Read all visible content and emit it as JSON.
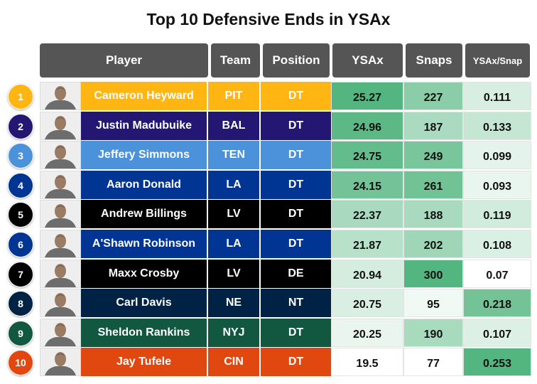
{
  "title": "Top 10 Defensive Ends in YSAx",
  "headers": {
    "player": "Player",
    "team": "Team",
    "position": "Position",
    "ysax": "YSAx",
    "snaps": "Snaps",
    "ysax_per_snap": "YSAx/Snap"
  },
  "rows": [
    {
      "rank": "1",
      "player": "Cameron Heyward",
      "team": "PIT",
      "position": "DT",
      "ysax": "25.27",
      "snaps": "227",
      "ysax_per_snap": "0.111",
      "color": "#FFB612",
      "text_color": "#ffffff"
    },
    {
      "rank": "2",
      "player": "Justin Madubuike",
      "team": "BAL",
      "position": "DT",
      "ysax": "24.96",
      "snaps": "187",
      "ysax_per_snap": "0.133",
      "color": "#241773",
      "text_color": "#ffffff"
    },
    {
      "rank": "3",
      "player": "Jeffery Simmons",
      "team": "TEN",
      "position": "DT",
      "ysax": "24.75",
      "snaps": "249",
      "ysax_per_snap": "0.099",
      "color": "#4B92DB",
      "text_color": "#ffffff"
    },
    {
      "rank": "4",
      "player": "Aaron Donald",
      "team": "LA",
      "position": "DT",
      "ysax": "24.15",
      "snaps": "261",
      "ysax_per_snap": "0.093",
      "color": "#003594",
      "text_color": "#ffffff"
    },
    {
      "rank": "5",
      "player": "Andrew Billings",
      "team": "LV",
      "position": "DT",
      "ysax": "22.37",
      "snaps": "188",
      "ysax_per_snap": "0.119",
      "color": "#000000",
      "text_color": "#ffffff"
    },
    {
      "rank": "6",
      "player": "A'Shawn Robinson",
      "team": "LA",
      "position": "DT",
      "ysax": "21.87",
      "snaps": "202",
      "ysax_per_snap": "0.108",
      "color": "#003594",
      "text_color": "#ffffff"
    },
    {
      "rank": "7",
      "player": "Maxx Crosby",
      "team": "LV",
      "position": "DE",
      "ysax": "20.94",
      "snaps": "300",
      "ysax_per_snap": "0.07",
      "color": "#000000",
      "text_color": "#ffffff"
    },
    {
      "rank": "8",
      "player": "Carl Davis",
      "team": "NE",
      "position": "NT",
      "ysax": "20.75",
      "snaps": "95",
      "ysax_per_snap": "0.218",
      "color": "#002244",
      "text_color": "#ffffff"
    },
    {
      "rank": "9",
      "player": "Sheldon Rankins",
      "team": "NYJ",
      "position": "DT",
      "ysax": "20.25",
      "snaps": "190",
      "ysax_per_snap": "0.107",
      "color": "#125740",
      "text_color": "#ffffff"
    },
    {
      "rank": "10",
      "player": "Jay Tufele",
      "team": "CIN",
      "position": "DT",
      "ysax": "19.5",
      "snaps": "77",
      "ysax_per_snap": "0.253",
      "color": "#E0480F",
      "text_color": "#ffffff"
    }
  ],
  "heat_scale": {
    "low": "#ffffff",
    "high": "#53b57f"
  },
  "chart_data": {
    "type": "table",
    "title": "Top 10 Defensive Ends in YSAx",
    "columns": [
      "Player",
      "Team",
      "Position",
      "YSAx",
      "Snaps",
      "YSAx/Snap"
    ],
    "rows": [
      [
        "Cameron Heyward",
        "PIT",
        "DT",
        25.27,
        227,
        0.111
      ],
      [
        "Justin Madubuike",
        "BAL",
        "DT",
        24.96,
        187,
        0.133
      ],
      [
        "Jeffery Simmons",
        "TEN",
        "DT",
        24.75,
        249,
        0.099
      ],
      [
        "Aaron Donald",
        "LA",
        "DT",
        24.15,
        261,
        0.093
      ],
      [
        "Andrew Billings",
        "LV",
        "DT",
        22.37,
        188,
        0.119
      ],
      [
        "A'Shawn Robinson",
        "LA",
        "DT",
        21.87,
        202,
        0.108
      ],
      [
        "Maxx Crosby",
        "LV",
        "DE",
        20.94,
        300,
        0.07
      ],
      [
        "Carl Davis",
        "NE",
        "NT",
        20.75,
        95,
        0.218
      ],
      [
        "Sheldon Rankins",
        "NYJ",
        "DT",
        20.25,
        190,
        0.107
      ],
      [
        "Jay Tufele",
        "CIN",
        "DT",
        19.5,
        77,
        0.253
      ]
    ]
  }
}
